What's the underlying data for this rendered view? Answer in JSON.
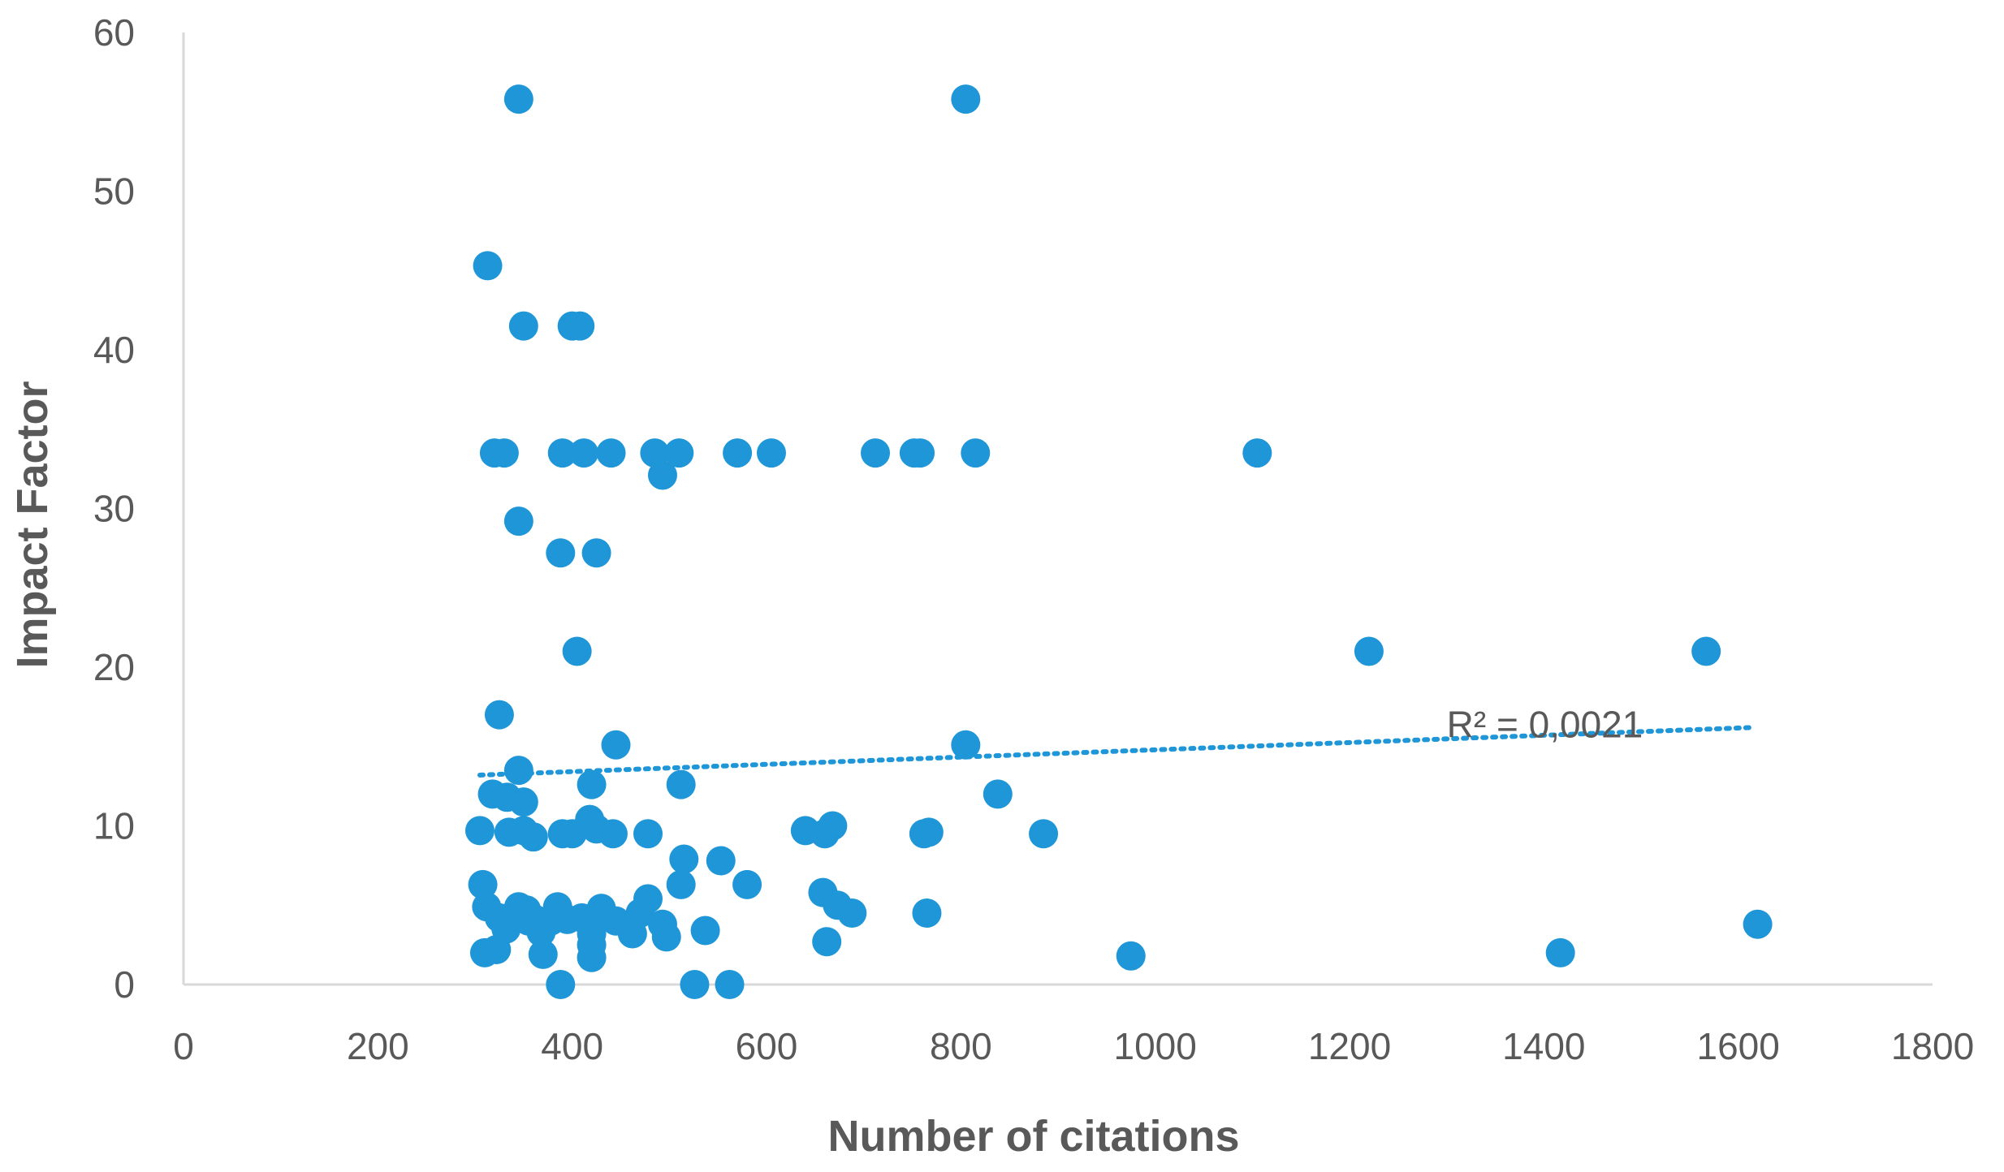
{
  "chart_data": {
    "type": "scatter",
    "title": "",
    "xlabel": "Number of citations",
    "ylabel": "Impact Factor",
    "xlim": [
      0,
      1800
    ],
    "ylim": [
      0,
      60
    ],
    "xticks": [
      "0",
      "200",
      "400",
      "600",
      "800",
      "1000",
      "1200",
      "1400",
      "1600",
      "1800"
    ],
    "yticks": [
      "0",
      "10",
      "20",
      "30",
      "40",
      "50",
      "60"
    ],
    "grid": false,
    "legend": "none",
    "color": "#1e96d8",
    "trendline": {
      "type": "linear",
      "style": "dotted",
      "x_range": [
        305,
        1615
      ],
      "y_start": 13.2,
      "y_end": 16.2,
      "label": "R² = 0,0021",
      "label_x": 1300,
      "label_y": 16.3
    },
    "points": [
      [
        345,
        55.8
      ],
      [
        805,
        55.8
      ],
      [
        313,
        45.3
      ],
      [
        350,
        41.5
      ],
      [
        400,
        41.5
      ],
      [
        408,
        41.5
      ],
      [
        320,
        33.5
      ],
      [
        330,
        33.5
      ],
      [
        390,
        33.5
      ],
      [
        412,
        33.5
      ],
      [
        440,
        33.5
      ],
      [
        485,
        33.5
      ],
      [
        510,
        33.5
      ],
      [
        570,
        33.5
      ],
      [
        605,
        33.5
      ],
      [
        712,
        33.5
      ],
      [
        752,
        33.5
      ],
      [
        758,
        33.5
      ],
      [
        815,
        33.5
      ],
      [
        1105,
        33.5
      ],
      [
        493,
        32.1
      ],
      [
        345,
        29.2
      ],
      [
        388,
        27.2
      ],
      [
        425,
        27.2
      ],
      [
        405,
        21.0
      ],
      [
        1220,
        21.0
      ],
      [
        1567,
        21.0
      ],
      [
        325,
        17.0
      ],
      [
        445,
        15.1
      ],
      [
        805,
        15.1
      ],
      [
        345,
        13.5
      ],
      [
        420,
        12.6
      ],
      [
        512,
        12.6
      ],
      [
        318,
        12.0
      ],
      [
        333,
        11.8
      ],
      [
        350,
        11.5
      ],
      [
        838,
        12.0
      ],
      [
        418,
        10.4
      ],
      [
        668,
        10.0
      ],
      [
        305,
        9.7
      ],
      [
        335,
        9.6
      ],
      [
        350,
        9.7
      ],
      [
        360,
        9.3
      ],
      [
        390,
        9.5
      ],
      [
        400,
        9.5
      ],
      [
        425,
        9.8
      ],
      [
        442,
        9.5
      ],
      [
        478,
        9.5
      ],
      [
        640,
        9.7
      ],
      [
        660,
        9.5
      ],
      [
        762,
        9.5
      ],
      [
        767,
        9.6
      ],
      [
        885,
        9.5
      ],
      [
        515,
        7.9
      ],
      [
        553,
        7.8
      ],
      [
        308,
        6.3
      ],
      [
        512,
        6.3
      ],
      [
        580,
        6.3
      ],
      [
        658,
        5.8
      ],
      [
        478,
        5.4
      ],
      [
        673,
        5.0
      ],
      [
        312,
        4.9
      ],
      [
        345,
        4.9
      ],
      [
        353,
        4.7
      ],
      [
        385,
        4.9
      ],
      [
        430,
        4.8
      ],
      [
        470,
        4.5
      ],
      [
        688,
        4.5
      ],
      [
        765,
        4.5
      ],
      [
        325,
        4.2
      ],
      [
        355,
        4.0
      ],
      [
        362,
        4.1
      ],
      [
        378,
        4.0
      ],
      [
        395,
        4.1
      ],
      [
        410,
        4.2
      ],
      [
        445,
        4.0
      ],
      [
        493,
        3.8
      ],
      [
        1620,
        3.8
      ],
      [
        332,
        3.5
      ],
      [
        368,
        3.3
      ],
      [
        420,
        3.2
      ],
      [
        462,
        3.2
      ],
      [
        497,
        3.0
      ],
      [
        537,
        3.4
      ],
      [
        662,
        2.7
      ],
      [
        420,
        2.5
      ],
      [
        310,
        2.0
      ],
      [
        322,
        2.2
      ],
      [
        370,
        1.9
      ],
      [
        420,
        1.7
      ],
      [
        975,
        1.8
      ],
      [
        1417,
        2.0
      ],
      [
        388,
        0.0
      ],
      [
        526,
        0.0
      ],
      [
        562,
        0.0
      ]
    ]
  }
}
